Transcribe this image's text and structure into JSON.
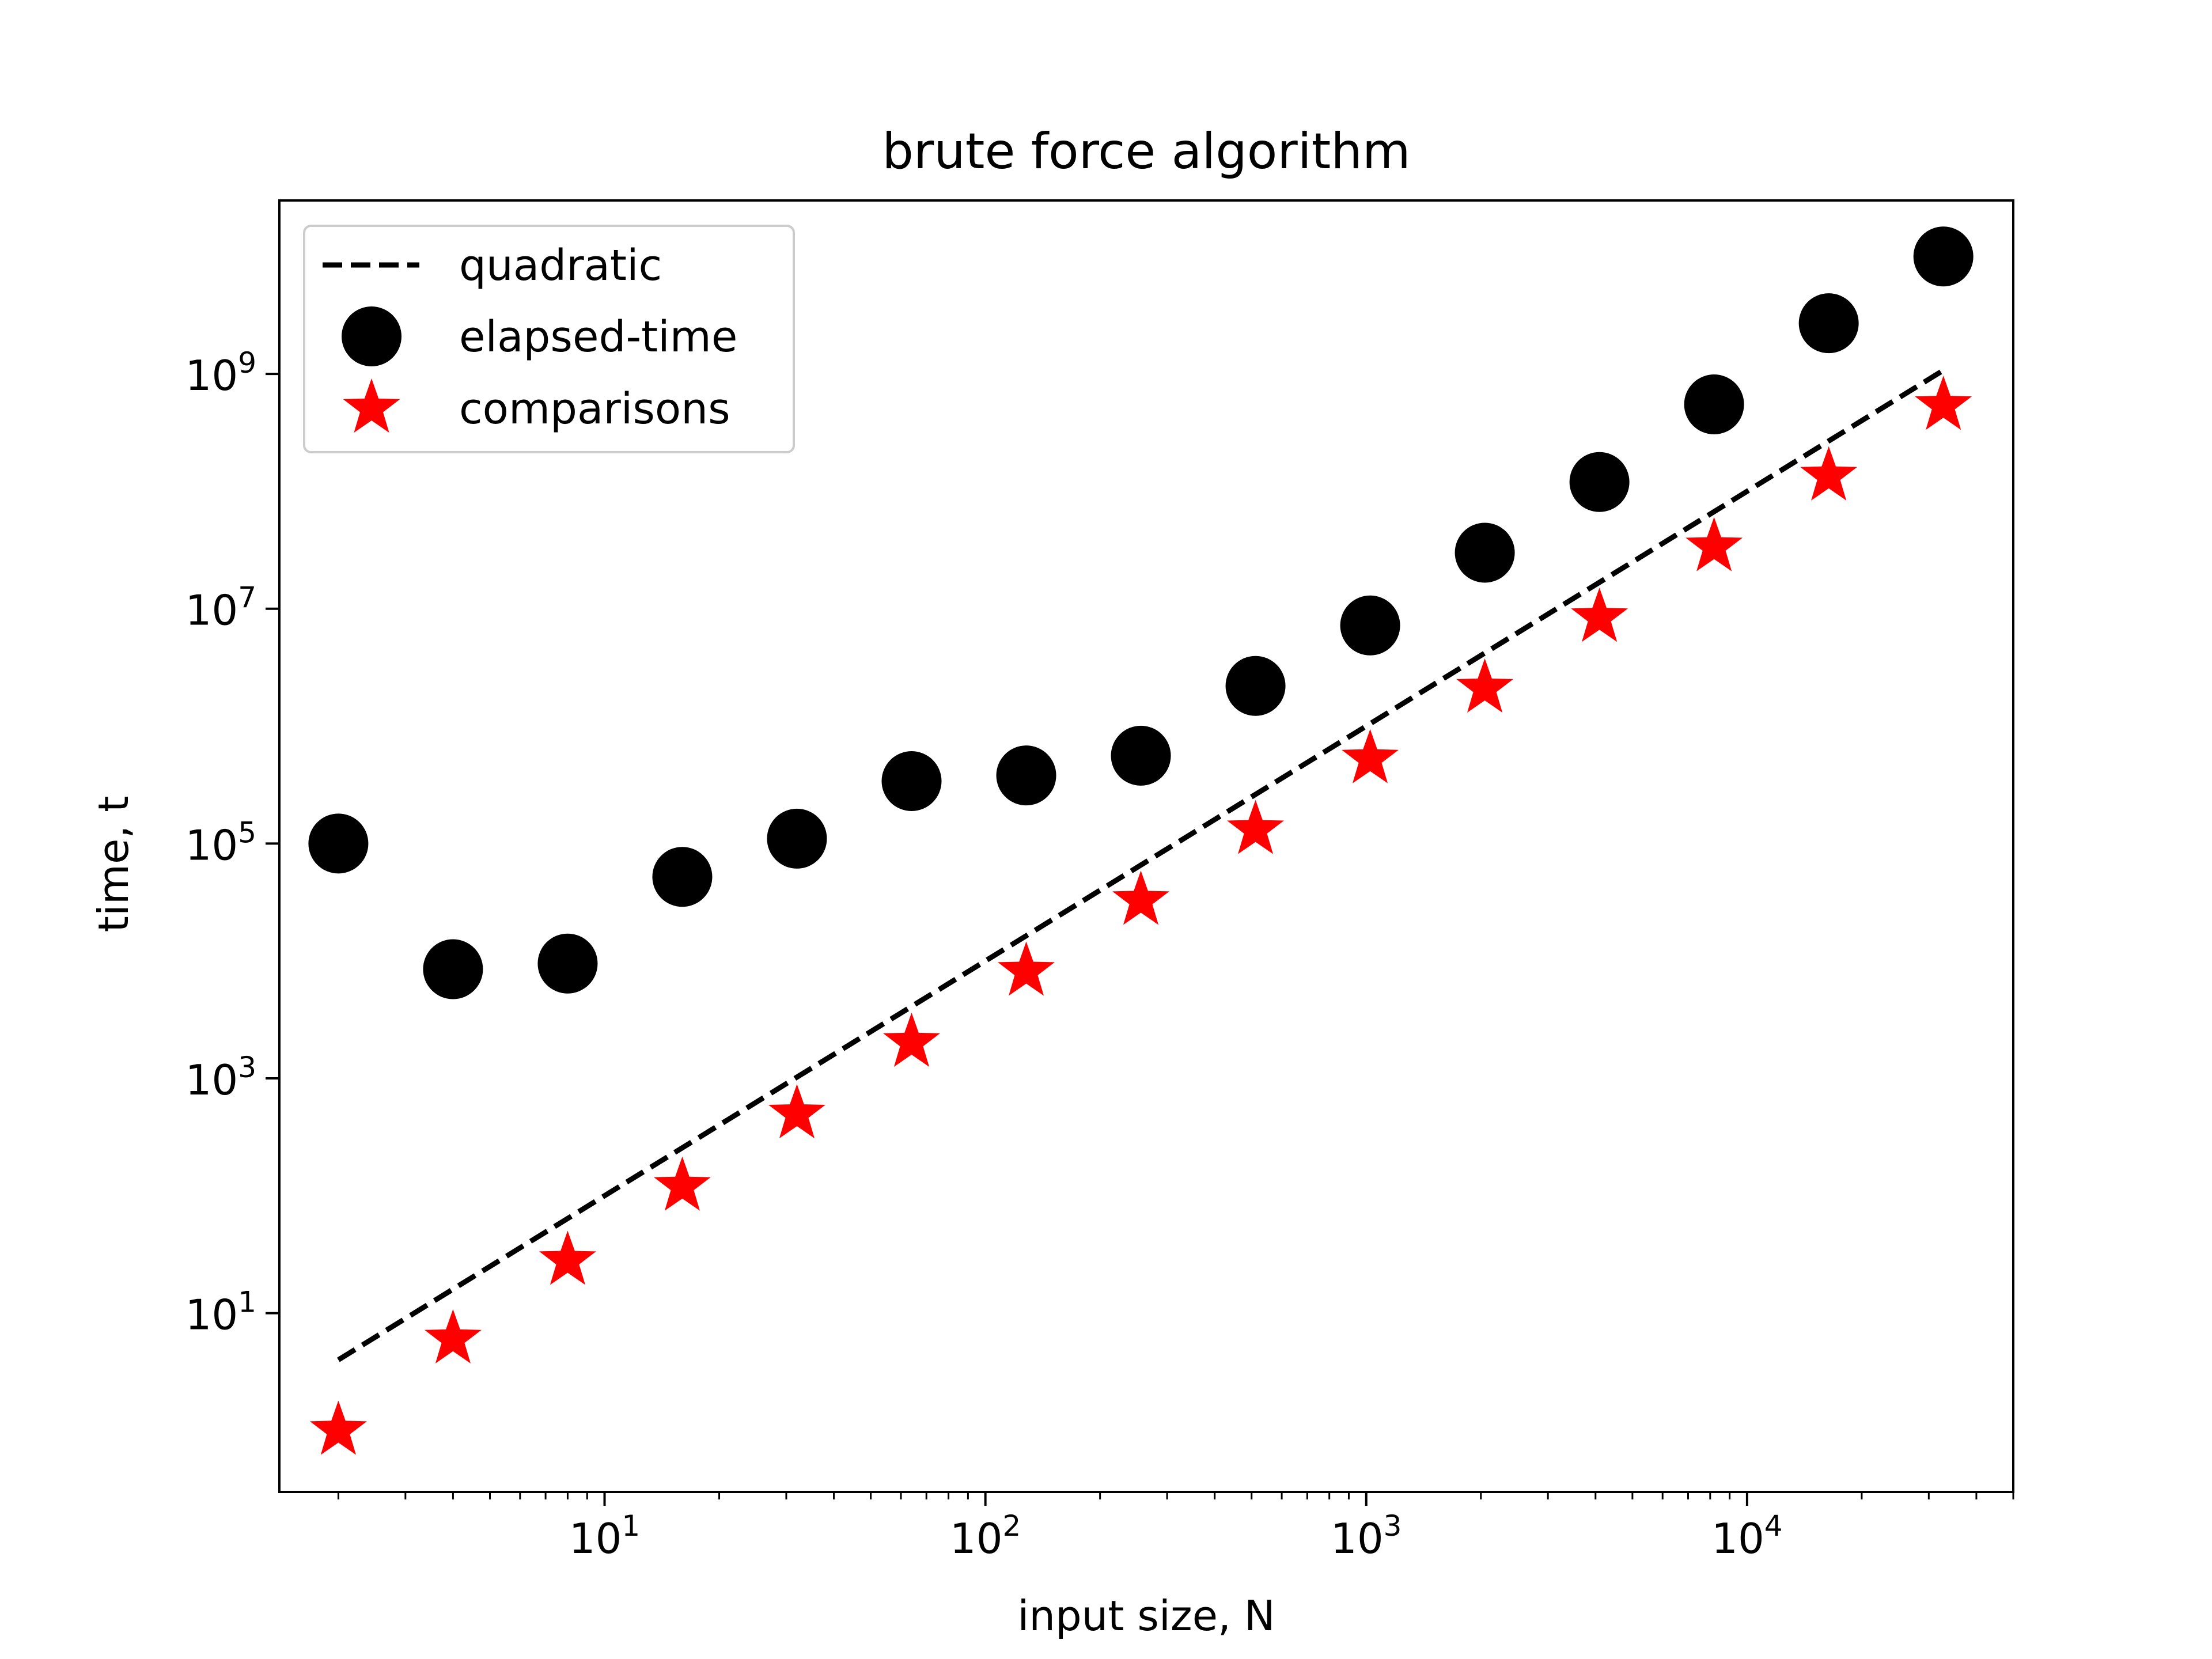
{
  "chart_data": {
    "type": "scatter",
    "title": "brute force algorithm",
    "xlabel": "input size, N",
    "ylabel": "time, t",
    "xscale": "log",
    "yscale": "log",
    "xlim": [
      1.4,
      50000
    ],
    "ylim": [
      0.3,
      30000000000
    ],
    "xticks": [
      {
        "base": "10",
        "exp": "1",
        "value": 10
      },
      {
        "base": "10",
        "exp": "2",
        "value": 100
      },
      {
        "base": "10",
        "exp": "3",
        "value": 1000
      },
      {
        "base": "10",
        "exp": "4",
        "value": 10000
      }
    ],
    "yticks": [
      {
        "base": "10",
        "exp": "1",
        "value": 10
      },
      {
        "base": "10",
        "exp": "3",
        "value": 1000
      },
      {
        "base": "10",
        "exp": "5",
        "value": 100000
      },
      {
        "base": "10",
        "exp": "7",
        "value": 10000000
      },
      {
        "base": "10",
        "exp": "9",
        "value": 1000000000
      }
    ],
    "legend_position": "upper-left",
    "series": [
      {
        "name": "quadratic",
        "kind": "line",
        "style": "dashed",
        "color": "#000000",
        "x": [
          2,
          32768
        ],
        "y": [
          4,
          1073741824
        ]
      },
      {
        "name": "elapsed-time",
        "kind": "marker",
        "marker": "circle",
        "color": "#000000",
        "x": [
          2,
          4,
          8,
          16,
          32,
          64,
          128,
          256,
          512,
          1024,
          2048,
          4096,
          8192,
          16384,
          32768
        ],
        "y": [
          100000,
          8500,
          9500,
          52000,
          110000,
          340000,
          380000,
          560000,
          2200000,
          7200000,
          30000000,
          120000000,
          550000000,
          2700000000,
          10000000000
        ]
      },
      {
        "name": "comparisons",
        "kind": "marker",
        "marker": "star",
        "color": "#ff0000",
        "x": [
          2,
          4,
          8,
          16,
          32,
          64,
          128,
          256,
          512,
          1024,
          2048,
          4096,
          8192,
          16384,
          32768
        ],
        "y": [
          1,
          6,
          28,
          120,
          496,
          2016,
          8128,
          32640,
          130816,
          523776,
          2096128,
          8386560,
          33550336,
          134209536,
          536854528
        ]
      }
    ]
  }
}
